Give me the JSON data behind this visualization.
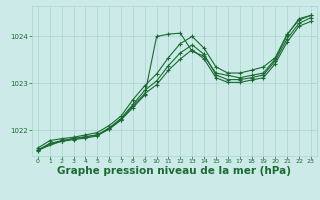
{
  "background_color": "#cceae7",
  "grid_color": "#aad4cf",
  "line_color": "#1a6b32",
  "xlabel": "Graphe pression niveau de la mer (hPa)",
  "xlabel_fontsize": 7.5,
  "xlabel_color": "#1a6b32",
  "xlim": [
    -0.5,
    23.5
  ],
  "ylim": [
    1021.45,
    1024.65
  ],
  "yticks": [
    1022,
    1023,
    1024
  ],
  "xticks": [
    0,
    1,
    2,
    3,
    4,
    5,
    6,
    7,
    8,
    9,
    10,
    11,
    12,
    13,
    14,
    15,
    16,
    17,
    18,
    19,
    20,
    21,
    22,
    23
  ],
  "line1_x": [
    0,
    1,
    2,
    3,
    4,
    5,
    6,
    7,
    8,
    9,
    10,
    11,
    12,
    13,
    14,
    15,
    16,
    17,
    18,
    19,
    20,
    21,
    22,
    23
  ],
  "line1_y": [
    1021.62,
    1021.78,
    1021.82,
    1021.85,
    1021.9,
    1021.95,
    1022.1,
    1022.3,
    1022.65,
    1022.95,
    1023.2,
    1023.55,
    1023.85,
    1024.0,
    1023.75,
    1023.35,
    1023.22,
    1023.22,
    1023.28,
    1023.35,
    1023.55,
    1024.05,
    1024.35,
    1024.45
  ],
  "line2_x": [
    0,
    1,
    2,
    3,
    4,
    5,
    6,
    7,
    8,
    9,
    10,
    11,
    12,
    13,
    14,
    15,
    16,
    17,
    18,
    19,
    20,
    21,
    22,
    23
  ],
  "line2_y": [
    1021.58,
    1021.72,
    1021.78,
    1021.82,
    1021.86,
    1021.9,
    1022.05,
    1022.25,
    1022.55,
    1022.85,
    1023.05,
    1023.38,
    1023.65,
    1023.82,
    1023.62,
    1023.18,
    1023.08,
    1023.08,
    1023.12,
    1023.18,
    1023.48,
    1023.95,
    1024.28,
    1024.4
  ],
  "line3_x": [
    0,
    2,
    3,
    4,
    5,
    6,
    7,
    8,
    9,
    10,
    11,
    12,
    13,
    14,
    15,
    16,
    17,
    18,
    19,
    20,
    21,
    22,
    23
  ],
  "line3_y": [
    1021.58,
    1021.77,
    1021.82,
    1021.86,
    1021.9,
    1022.02,
    1022.22,
    1022.48,
    1022.75,
    1024.0,
    1024.05,
    1024.07,
    1023.68,
    1023.58,
    1023.22,
    1023.17,
    1023.12,
    1023.17,
    1023.22,
    1023.52,
    1024.03,
    1024.38,
    1024.45
  ],
  "line4_x": [
    0,
    1,
    2,
    3,
    4,
    5,
    6,
    7,
    8,
    9,
    10,
    11,
    12,
    13,
    14,
    15,
    16,
    17,
    18,
    19,
    20,
    21,
    22,
    23
  ],
  "line4_y": [
    1021.56,
    1021.7,
    1021.76,
    1021.8,
    1021.83,
    1021.88,
    1022.03,
    1022.22,
    1022.52,
    1022.78,
    1022.97,
    1023.28,
    1023.52,
    1023.72,
    1023.52,
    1023.12,
    1023.02,
    1023.02,
    1023.07,
    1023.12,
    1023.42,
    1023.88,
    1024.22,
    1024.32
  ]
}
